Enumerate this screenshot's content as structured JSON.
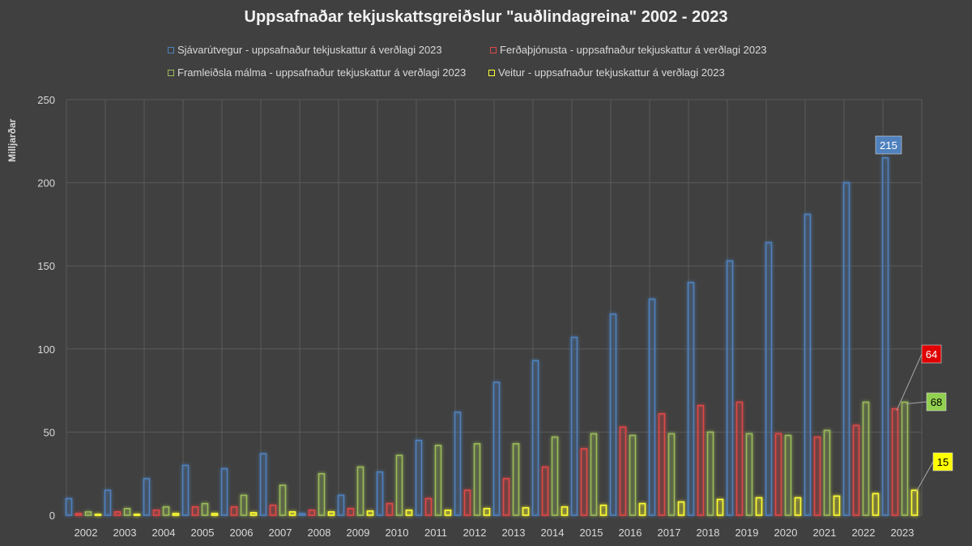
{
  "chart_data": {
    "type": "bar",
    "title": "Uppsafnaðar tekjuskattsgreiðslur \"auðlindagreina\" 2002 - 2023",
    "ylabel": "Milljarðar",
    "xlabel": "",
    "ylim": [
      0,
      250
    ],
    "yticks": [
      "0",
      "50",
      "100",
      "150",
      "200",
      "250"
    ],
    "grid": true,
    "legend_position": "top",
    "categories": [
      "2002",
      "2003",
      "2004",
      "2005",
      "2006",
      "2007",
      "2008",
      "2009",
      "2010",
      "2011",
      "2012",
      "2013",
      "2014",
      "2015",
      "2016",
      "2017",
      "2018",
      "2019",
      "2020",
      "2021",
      "2022",
      "2023"
    ],
    "series": [
      {
        "name": "Sjávarútvegur - uppsafnaður tekjuskattur á verðlagi 2023",
        "color": "#4f81bd",
        "values": [
          10,
          15,
          22,
          30,
          28,
          37,
          1,
          12,
          26,
          45,
          62,
          80,
          93,
          107,
          121,
          130,
          140,
          153,
          164,
          181,
          200,
          215
        ]
      },
      {
        "name": "Ferðaþjónusta - uppsafnaður tekjuskattur á verðlagi 2023",
        "color": "#e04848",
        "values": [
          1,
          2,
          3,
          5,
          5,
          6,
          3,
          4,
          7,
          10,
          15,
          22,
          29,
          40,
          53,
          61,
          66,
          68,
          49,
          47,
          54,
          64
        ]
      },
      {
        "name": "Framleiðsla málma - uppsafnaður tekjuskattur á verðlagi 2023",
        "color": "#9bbb59",
        "values": [
          2,
          4,
          5,
          7,
          12,
          18,
          25,
          29,
          36,
          42,
          43,
          43,
          47,
          49,
          48,
          49,
          50,
          49,
          48,
          51,
          68,
          68
        ]
      },
      {
        "name": "Veitur - uppsafnaður tekjuskattur á verðlagi 2023",
        "color": "#ffff33",
        "values": [
          0,
          0.5,
          1,
          1,
          1.5,
          2,
          2,
          2.5,
          3,
          3,
          4,
          4.5,
          5,
          6,
          7,
          8,
          9.5,
          10.5,
          10.5,
          11.5,
          13,
          15
        ]
      }
    ],
    "data_labels": [
      {
        "series": 0,
        "text": "215",
        "bg": "#4f81bd",
        "fg": "#ffffff"
      },
      {
        "series": 1,
        "text": "64",
        "bg": "#e00000",
        "fg": "#ffffff"
      },
      {
        "series": 2,
        "text": "68",
        "bg": "#92d050",
        "fg": "#000000"
      },
      {
        "series": 3,
        "text": "15",
        "bg": "#ffff00",
        "fg": "#000000"
      }
    ]
  }
}
